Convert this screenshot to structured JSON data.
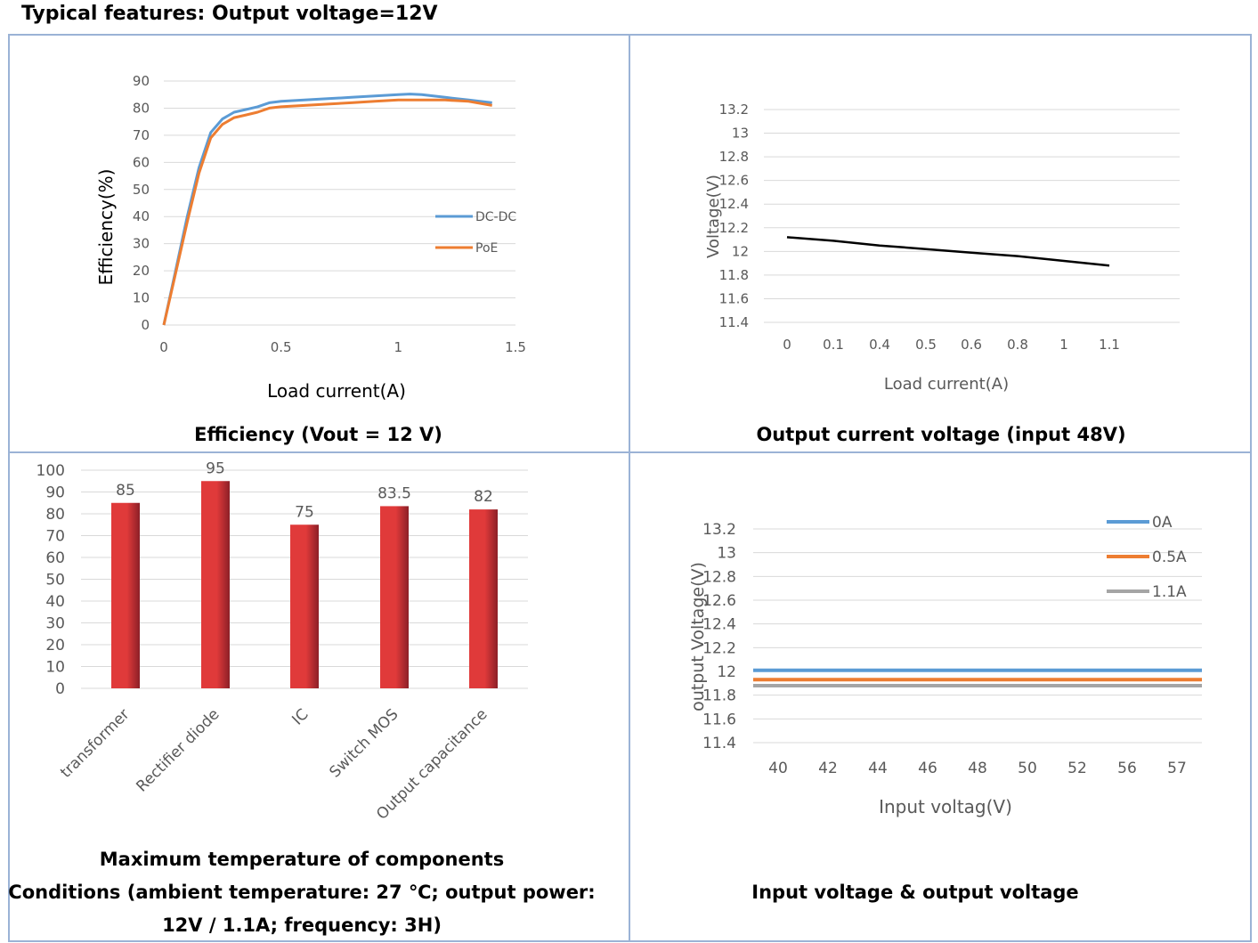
{
  "page": {
    "title": "Typical features:  Output voltage=12V"
  },
  "captions": {
    "efficiency": "Efficiency (Vout = 12 V)",
    "output_current": "Output current voltage (input 48V)",
    "temperature_1": "Maximum temperature of components",
    "temperature_2": "Conditions (ambient temperature: 27 ℃; output power:",
    "temperature_3": "12V / 1.1A; frequency: 3H)",
    "input_output": "Input voltage & output voltage"
  },
  "chart_data": [
    {
      "id": "efficiency",
      "type": "line",
      "xlabel": "Load current(A)",
      "ylabel": "Efficiency(%)",
      "xlim": [
        0,
        1.5
      ],
      "ylim": [
        0,
        90
      ],
      "xticks": [
        "0",
        "0.5",
        "1",
        "1.5"
      ],
      "yticks": [
        "0",
        "10",
        "20",
        "30",
        "40",
        "50",
        "60",
        "70",
        "80",
        "90"
      ],
      "grid": true,
      "legend": "right",
      "series": [
        {
          "name": "DC-DC",
          "color": "#5b9bd5",
          "x": [
            0,
            0.05,
            0.1,
            0.15,
            0.2,
            0.25,
            0.3,
            0.35,
            0.4,
            0.45,
            0.5,
            0.6,
            0.7,
            0.8,
            0.9,
            1.0,
            1.05,
            1.1,
            1.2,
            1.3,
            1.4
          ],
          "y": [
            0,
            20,
            40,
            58,
            71,
            76,
            78.5,
            79.5,
            80.5,
            82,
            82.5,
            83,
            83.5,
            84,
            84.5,
            85,
            85.2,
            85,
            84,
            83,
            82
          ]
        },
        {
          "name": "PoE",
          "color": "#ed7d31",
          "x": [
            0,
            0.05,
            0.1,
            0.15,
            0.2,
            0.25,
            0.3,
            0.35,
            0.4,
            0.45,
            0.5,
            0.6,
            0.7,
            0.8,
            0.9,
            1.0,
            1.1,
            1.2,
            1.3,
            1.4
          ],
          "y": [
            0,
            19,
            38,
            56,
            69,
            74,
            76.5,
            77.5,
            78.5,
            80,
            80.5,
            81,
            81.5,
            82,
            82.5,
            83,
            83,
            83,
            82.5,
            81
          ]
        }
      ]
    },
    {
      "id": "output_current",
      "type": "line",
      "xlabel": "Load current(A)",
      "ylabel": "Voltage(V)",
      "categories": [
        "0",
        "0.1",
        "0.4",
        "0.5",
        "0.6",
        "0.8",
        "1",
        "1.1"
      ],
      "ylim": [
        11.4,
        13.2
      ],
      "yticks": [
        "11.4",
        "11.6",
        "11.8",
        "12",
        "12.2",
        "12.4",
        "12.6",
        "12.8",
        "13",
        "13.2"
      ],
      "grid": true,
      "series": [
        {
          "color": "#000000",
          "values": [
            12.12,
            12.09,
            12.05,
            12.02,
            11.99,
            11.96,
            11.92,
            11.88
          ]
        }
      ]
    },
    {
      "id": "temperature",
      "type": "bar",
      "categories": [
        "transformer",
        "Rectifier diode",
        "IC",
        "Switch MOS",
        "Output capacitance"
      ],
      "values": [
        85,
        95,
        75,
        83.5,
        82
      ],
      "value_labels": [
        "85",
        "95",
        "75",
        "83.5",
        "82"
      ],
      "ylim": [
        0,
        100
      ],
      "yticks": [
        "0",
        "10",
        "20",
        "30",
        "40",
        "50",
        "60",
        "70",
        "80",
        "90",
        "100"
      ],
      "grid": true,
      "colors": {
        "bar": "#e03a3a",
        "bar_dark": "#8c1f27"
      }
    },
    {
      "id": "input_output",
      "type": "line",
      "xlabel": "Input voltag(V)",
      "ylabel": "output Voltage(V)",
      "categories": [
        "40",
        "42",
        "44",
        "46",
        "48",
        "50",
        "52",
        "56",
        "57"
      ],
      "ylim": [
        11.4,
        13.2
      ],
      "yticks": [
        "11.4",
        "11.6",
        "11.8",
        "12",
        "12.2",
        "12.4",
        "12.6",
        "12.8",
        "13",
        "13.2"
      ],
      "grid": true,
      "legend": "top-right",
      "series": [
        {
          "name": "0A",
          "color": "#5b9bd5",
          "values": [
            12.01,
            12.01,
            12.01,
            12.01,
            12.01,
            12.01,
            12.01,
            12.01,
            12.01
          ]
        },
        {
          "name": "0.5A",
          "color": "#ed7d31",
          "values": [
            11.93,
            11.93,
            11.93,
            11.93,
            11.93,
            11.93,
            11.93,
            11.93,
            11.93
          ]
        },
        {
          "name": "1.1A",
          "color": "#a5a5a5",
          "values": [
            11.88,
            11.88,
            11.88,
            11.88,
            11.88,
            11.88,
            11.88,
            11.88,
            11.88
          ]
        }
      ]
    }
  ]
}
